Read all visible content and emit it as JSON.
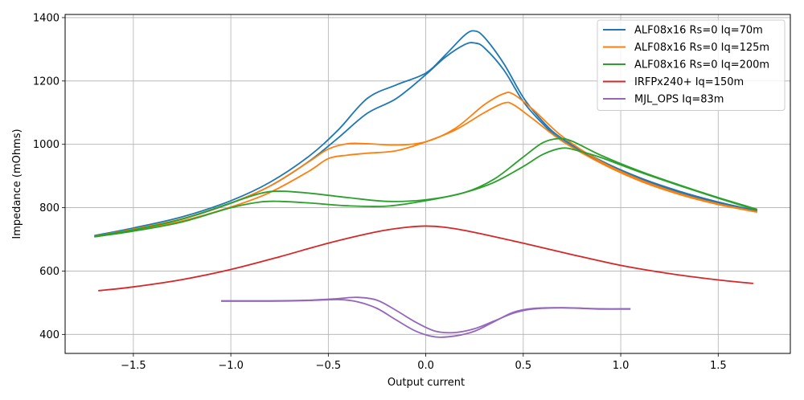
{
  "chart_data": {
    "type": "line",
    "title": "",
    "xlabel": "Output current",
    "ylabel": "Impedance (mOhms)",
    "xlim": [
      -1.85,
      1.87
    ],
    "ylim": [
      340,
      1410
    ],
    "xticks": [
      -1.5,
      -1.0,
      -0.5,
      0.0,
      0.5,
      1.0,
      1.5
    ],
    "xtick_labels": [
      "−1.5",
      "−1.0",
      "−0.5",
      "0.0",
      "0.5",
      "1.0",
      "1.5"
    ],
    "yticks": [
      400,
      600,
      800,
      1000,
      1200,
      1400
    ],
    "ytick_labels": [
      "400",
      "600",
      "800",
      "1000",
      "1200",
      "1400"
    ],
    "grid": true,
    "legend_position": "top-right",
    "series": [
      {
        "name": "ALF08x16 Rs=0 Iq=70m",
        "color": "#1f77b4",
        "branches": [
          {
            "x": [
              -1.7,
              -1.5,
              -1.25,
              -1.0,
              -0.8,
              -0.6,
              -0.45,
              -0.3,
              -0.15,
              0.0,
              0.1,
              0.2,
              0.25,
              0.3,
              0.4,
              0.5,
              0.6,
              0.7,
              0.9,
              1.1,
              1.3,
              1.5,
              1.7
            ],
            "y": [
              712,
              736,
              771,
              822,
              880,
              962,
              1045,
              1145,
              1188,
              1225,
              1282,
              1345,
              1358,
              1338,
              1255,
              1148,
              1072,
              1018,
              948,
              894,
              852,
              818,
              790
            ]
          },
          {
            "x": [
              -1.7,
              -1.5,
              -1.25,
              -1.0,
              -0.8,
              -0.6,
              -0.45,
              -0.3,
              -0.15,
              0.0,
              0.1,
              0.2,
              0.25,
              0.3,
              0.4,
              0.5,
              0.6,
              0.7,
              0.9,
              1.1,
              1.3,
              1.5,
              1.7
            ],
            "y": [
              708,
              730,
              764,
              814,
              868,
              946,
              1020,
              1098,
              1145,
              1220,
              1275,
              1315,
              1320,
              1305,
              1235,
              1135,
              1065,
              1012,
              944,
              890,
              848,
              815,
              788
            ]
          }
        ]
      },
      {
        "name": "ALF08x16 Rs=0 Iq=125m",
        "color": "#ff7f0e",
        "branches": [
          {
            "x": [
              -1.7,
              -1.5,
              -1.25,
              -1.0,
              -0.8,
              -0.6,
              -0.5,
              -0.4,
              -0.3,
              -0.15,
              0.0,
              0.15,
              0.3,
              0.4,
              0.45,
              0.55,
              0.7,
              0.9,
              1.1,
              1.3,
              1.5,
              1.7
            ],
            "y": [
              710,
              732,
              765,
              815,
              868,
              945,
              985,
              1002,
              1002,
              998,
              1008,
              1050,
              1125,
              1160,
              1158,
              1110,
              1025,
              945,
              888,
              845,
              812,
              787
            ]
          },
          {
            "x": [
              -1.7,
              -1.5,
              -1.25,
              -1.0,
              -0.8,
              -0.6,
              -0.5,
              -0.4,
              -0.3,
              -0.15,
              0.0,
              0.15,
              0.3,
              0.4,
              0.45,
              0.55,
              0.7,
              0.9,
              1.1,
              1.3,
              1.5,
              1.7
            ],
            "y": [
              708,
              728,
              758,
              802,
              848,
              915,
              955,
              966,
              972,
              980,
              1008,
              1045,
              1100,
              1130,
              1125,
              1080,
              1010,
              940,
              884,
              842,
              810,
              786
            ]
          }
        ]
      },
      {
        "name": "ALF08x16 Rs=0 Iq=200m",
        "color": "#2ca02c",
        "branches": [
          {
            "x": [
              -1.7,
              -1.5,
              -1.25,
              -1.0,
              -0.85,
              -0.75,
              -0.6,
              -0.4,
              -0.2,
              0.0,
              0.2,
              0.35,
              0.5,
              0.6,
              0.68,
              0.75,
              0.9,
              1.1,
              1.3,
              1.5,
              1.7
            ],
            "y": [
              710,
              730,
              764,
              815,
              845,
              852,
              846,
              832,
              820,
              825,
              848,
              890,
              960,
              1005,
              1018,
              1010,
              965,
              915,
              872,
              832,
              795
            ]
          },
          {
            "x": [
              -1.7,
              -1.5,
              -1.25,
              -1.0,
              -0.85,
              -0.75,
              -0.6,
              -0.4,
              -0.2,
              0.0,
              0.2,
              0.35,
              0.5,
              0.6,
              0.7,
              0.78,
              0.9,
              1.1,
              1.3,
              1.5,
              1.7
            ],
            "y": [
              708,
              726,
              755,
              800,
              818,
              820,
              815,
              806,
              805,
              822,
              848,
              880,
              930,
              968,
              988,
              980,
              958,
              912,
              870,
              830,
              792
            ]
          }
        ]
      },
      {
        "name": "IRFPx240+ Iq=150m",
        "color": "#d62728",
        "branches": [
          {
            "x": [
              -1.68,
              -1.5,
              -1.25,
              -1.0,
              -0.75,
              -0.5,
              -0.25,
              -0.1,
              0.0,
              0.1,
              0.25,
              0.5,
              0.75,
              1.0,
              1.25,
              1.5,
              1.68
            ],
            "y": [
              538,
              550,
              573,
              605,
              645,
              688,
              724,
              738,
              742,
              738,
              722,
              688,
              652,
              618,
              592,
              572,
              561
            ]
          }
        ]
      },
      {
        "name": "MJL_OPS Iq=83m",
        "color": "#9467bd",
        "branches": [
          {
            "x": [
              -1.05,
              -0.8,
              -0.6,
              -0.45,
              -0.35,
              -0.25,
              -0.15,
              -0.05,
              0.05,
              0.15,
              0.25,
              0.35,
              0.45,
              0.55,
              0.7,
              0.9,
              1.05
            ],
            "y": [
              506,
              506,
              508,
              513,
              517,
              508,
              475,
              438,
              410,
              406,
              418,
              442,
              467,
              480,
              484,
              481,
              481
            ]
          },
          {
            "x": [
              -1.05,
              -0.8,
              -0.6,
              -0.45,
              -0.35,
              -0.25,
              -0.15,
              -0.05,
              0.05,
              0.15,
              0.25,
              0.35,
              0.45,
              0.55,
              0.7,
              0.9,
              1.05
            ],
            "y": [
              505,
              505,
              507,
              510,
              503,
              482,
              445,
              410,
              392,
              395,
              410,
              440,
              470,
              482,
              484,
              480,
              480
            ]
          }
        ]
      }
    ]
  }
}
